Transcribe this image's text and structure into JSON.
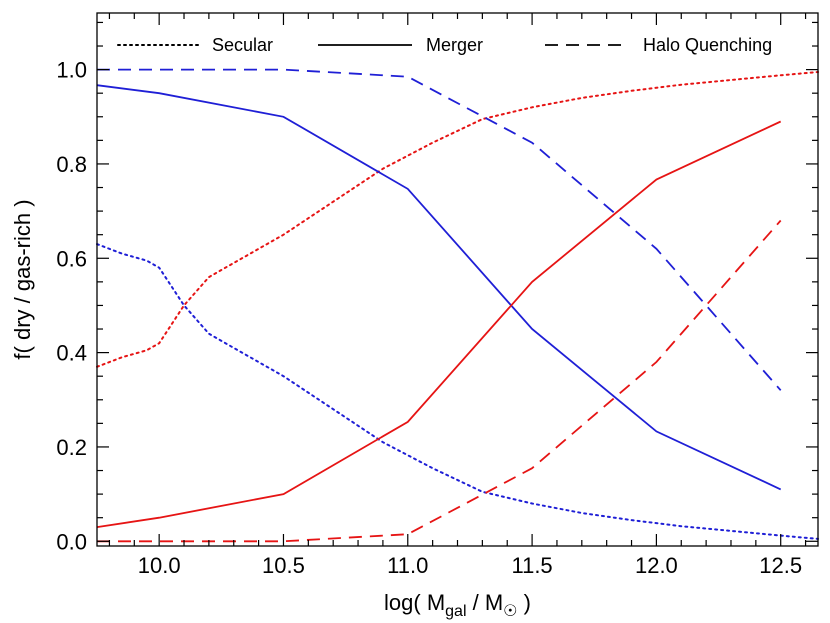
{
  "chart_data": {
    "type": "line",
    "title": "",
    "xlabel": {
      "prefix": "log( M",
      "sub1": "gal",
      "middle": " / M",
      "sub2": "☉",
      "suffix": " )"
    },
    "ylabel": "f( dry / gas-rich )",
    "xlim": [
      9.75,
      12.65
    ],
    "ylim": [
      -0.01,
      1.12
    ],
    "x_ticks": [
      10.0,
      10.5,
      11.0,
      11.5,
      12.0,
      12.5
    ],
    "x_tick_labels": [
      "10.0",
      "10.5",
      "11.0",
      "11.5",
      "12.0",
      "12.5"
    ],
    "y_ticks": [
      0.0,
      0.2,
      0.4,
      0.6,
      0.8,
      1.0
    ],
    "y_tick_labels": [
      "0.0",
      "0.2",
      "0.4",
      "0.6",
      "0.8",
      "1.0"
    ],
    "legend": {
      "placement": "top",
      "entries": [
        {
          "label": "Secular",
          "style": "dotted"
        },
        {
          "label": "Merger",
          "style": "solid"
        },
        {
          "label": "Halo Quenching",
          "style": "dashed"
        }
      ]
    },
    "colors": {
      "blue": "#1f1fd6",
      "red": "#e61414"
    },
    "series": [
      {
        "style": "dotted",
        "color": "blue",
        "x": [
          9.75,
          9.85,
          9.95,
          10.0,
          10.1,
          10.2,
          10.3,
          10.5,
          10.7,
          10.9,
          11.1,
          11.3,
          11.5,
          11.7,
          11.9,
          12.1,
          12.3,
          12.5,
          12.65
        ],
        "y": [
          0.63,
          0.61,
          0.595,
          0.58,
          0.5,
          0.44,
          0.41,
          0.35,
          0.28,
          0.21,
          0.155,
          0.105,
          0.08,
          0.06,
          0.045,
          0.032,
          0.022,
          0.012,
          0.005
        ]
      },
      {
        "style": "dotted",
        "color": "red",
        "x": [
          9.75,
          9.85,
          9.95,
          10.0,
          10.1,
          10.2,
          10.3,
          10.5,
          10.7,
          10.9,
          11.1,
          11.3,
          11.5,
          11.7,
          11.9,
          12.1,
          12.3,
          12.5,
          12.65
        ],
        "y": [
          0.37,
          0.39,
          0.405,
          0.42,
          0.5,
          0.56,
          0.59,
          0.65,
          0.72,
          0.79,
          0.845,
          0.895,
          0.92,
          0.94,
          0.955,
          0.968,
          0.978,
          0.988,
          0.995
        ]
      },
      {
        "style": "solid",
        "color": "blue",
        "x": [
          9.75,
          10.0,
          10.5,
          11.0,
          11.5,
          12.0,
          12.5
        ],
        "y": [
          0.967,
          0.95,
          0.9,
          0.747,
          0.45,
          0.233,
          0.11
        ]
      },
      {
        "style": "solid",
        "color": "red",
        "x": [
          9.75,
          10.0,
          10.5,
          11.0,
          11.5,
          12.0,
          12.5
        ],
        "y": [
          0.03,
          0.05,
          0.1,
          0.253,
          0.55,
          0.767,
          0.89
        ]
      },
      {
        "style": "dashed",
        "color": "blue",
        "x": [
          9.75,
          10.0,
          10.5,
          11.0,
          11.5,
          12.0,
          12.5
        ],
        "y": [
          1.0,
          1.0,
          1.0,
          0.985,
          0.845,
          0.62,
          0.32
        ]
      },
      {
        "style": "dashed",
        "color": "red",
        "x": [
          9.75,
          10.0,
          10.5,
          11.0,
          11.5,
          12.0,
          12.5
        ],
        "y": [
          0.0,
          0.0,
          0.0,
          0.015,
          0.155,
          0.38,
          0.68
        ]
      }
    ]
  }
}
